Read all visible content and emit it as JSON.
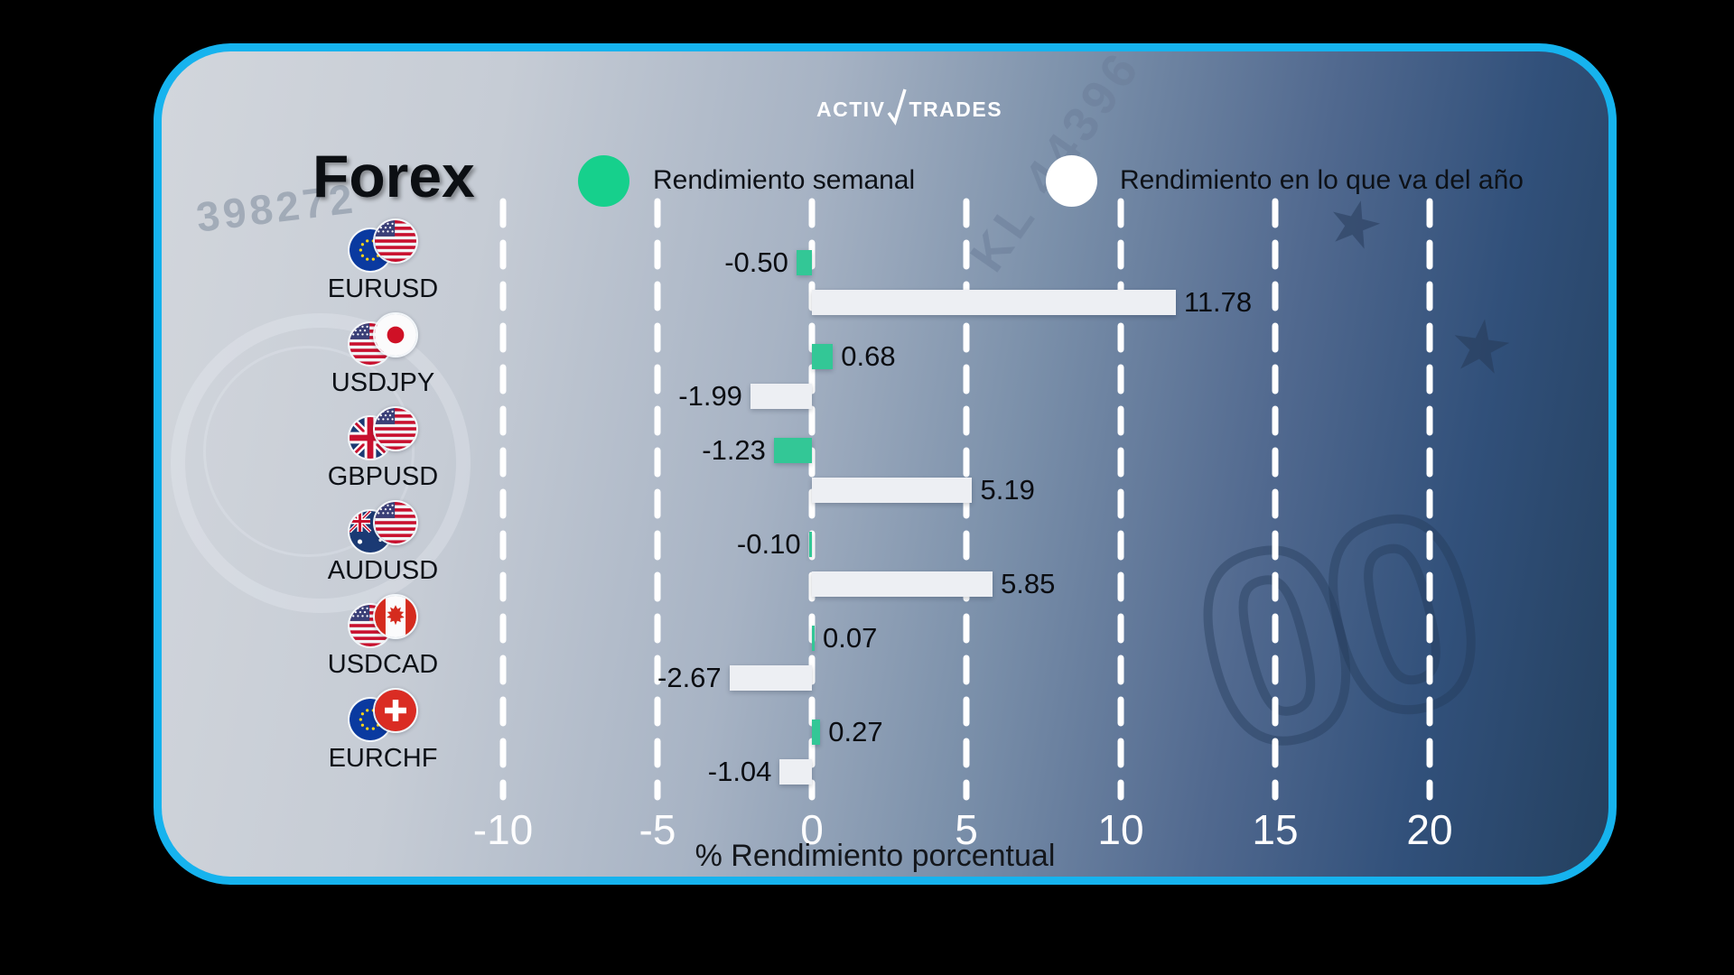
{
  "brand": {
    "name_a": "Activ",
    "name_b": "Trades"
  },
  "title": "Forex",
  "legend": {
    "weekly": {
      "label": "Rendimiento semanal",
      "color": "#16d08c"
    },
    "ytd": {
      "label": "Rendimiento en lo que va del año",
      "color": "#ffffff"
    }
  },
  "background_texts": {
    "serial": "398272",
    "plate": "KL 44396",
    "zeros": "00"
  },
  "chart_data": {
    "type": "bar",
    "orientation": "horizontal",
    "title": "Forex",
    "xlabel": "% Rendimiento porcentual",
    "x_ticks": [
      -10,
      -5,
      0,
      5,
      10,
      15,
      20
    ],
    "xlim": [
      -12.5,
      23
    ],
    "grid": "dashed-vertical-white",
    "legend_position": "top",
    "categories": [
      "EURUSD",
      "USDJPY",
      "GBPUSD",
      "AUDUSD",
      "USDCAD",
      "EURCHF"
    ],
    "series": [
      {
        "name": "Rendimiento semanal",
        "color": "#33c796",
        "values": [
          -0.5,
          0.68,
          -1.23,
          -0.1,
          0.07,
          0.27
        ]
      },
      {
        "name": "Rendimiento en lo que va del año",
        "color": "#edeff3",
        "values": [
          11.78,
          -1.99,
          5.19,
          5.85,
          -2.67,
          -1.04
        ]
      }
    ],
    "value_labels": [
      [
        "-0.50",
        "0.68",
        "-1.23",
        "-0.10",
        "0.07",
        "0.27"
      ],
      [
        "11.78",
        "-1.99",
        "5.19",
        "5.85",
        "-2.67",
        "-1.04"
      ]
    ]
  },
  "pairs": [
    {
      "name": "EURUSD",
      "flags": "eu-us"
    },
    {
      "name": "USDJPY",
      "flags": "us-jp"
    },
    {
      "name": "GBPUSD",
      "flags": "gb-us"
    },
    {
      "name": "AUDUSD",
      "flags": "au-us"
    },
    {
      "name": "USDCAD",
      "flags": "us-ca"
    },
    {
      "name": "EURCHF",
      "flags": "eu-ch"
    }
  ]
}
